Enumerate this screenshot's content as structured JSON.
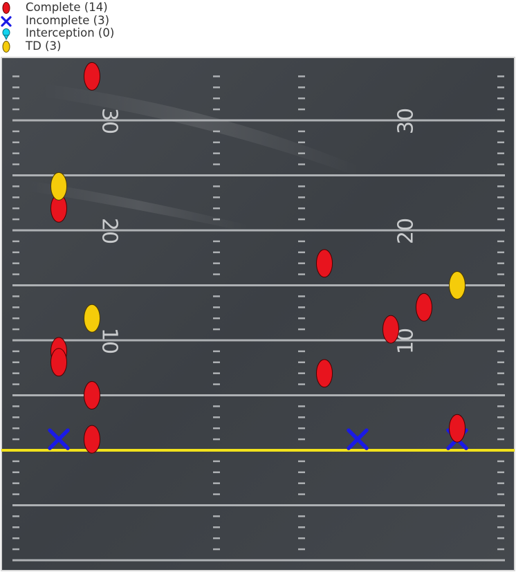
{
  "legend": [
    {
      "key": "complete",
      "label": "Complete (14)",
      "symbol": "ellipse",
      "color": "#e8141e"
    },
    {
      "key": "incomplete",
      "label": "Incomplete (3)",
      "symbol": "x",
      "color": "#1a1ae6"
    },
    {
      "key": "interception",
      "label": "Interception (0)",
      "symbol": "drop",
      "color": "#12d4f0"
    },
    {
      "key": "td",
      "label": "TD (3)",
      "symbol": "ellipse",
      "color": "#f5cc0a"
    }
  ],
  "field": {
    "background_color": "#3d4146",
    "line_color": "#aeb1b4",
    "line_of_scrimmage_color": "#f2e21c",
    "yard_numbers": [
      "30",
      "20",
      "10"
    ]
  },
  "chart_data": {
    "type": "scatter",
    "x_range": [
      -27,
      27
    ],
    "y_range": [
      -10,
      35
    ],
    "line_of_scrimmage": 0,
    "series": [
      {
        "name": "Complete",
        "points": [
          {
            "x": -20,
            "y": 34
          },
          {
            "x": -24,
            "y": 22
          },
          {
            "x": 8,
            "y": 17
          },
          {
            "x": 20,
            "y": 13
          },
          {
            "x": 16,
            "y": 11
          },
          {
            "x": -24,
            "y": 9
          },
          {
            "x": -24,
            "y": 8
          },
          {
            "x": 8,
            "y": 7
          },
          {
            "x": -20,
            "y": 5
          },
          {
            "x": -20,
            "y": 1
          },
          {
            "x": 24,
            "y": 2
          }
        ]
      },
      {
        "name": "Incomplete",
        "points": [
          {
            "x": -24,
            "y": 1
          },
          {
            "x": 12,
            "y": 1
          },
          {
            "x": 24,
            "y": 1
          }
        ]
      },
      {
        "name": "Interception",
        "points": []
      },
      {
        "name": "TD",
        "points": [
          {
            "x": -24,
            "y": 24
          },
          {
            "x": -20,
            "y": 12
          },
          {
            "x": 24,
            "y": 15
          }
        ]
      }
    ]
  }
}
